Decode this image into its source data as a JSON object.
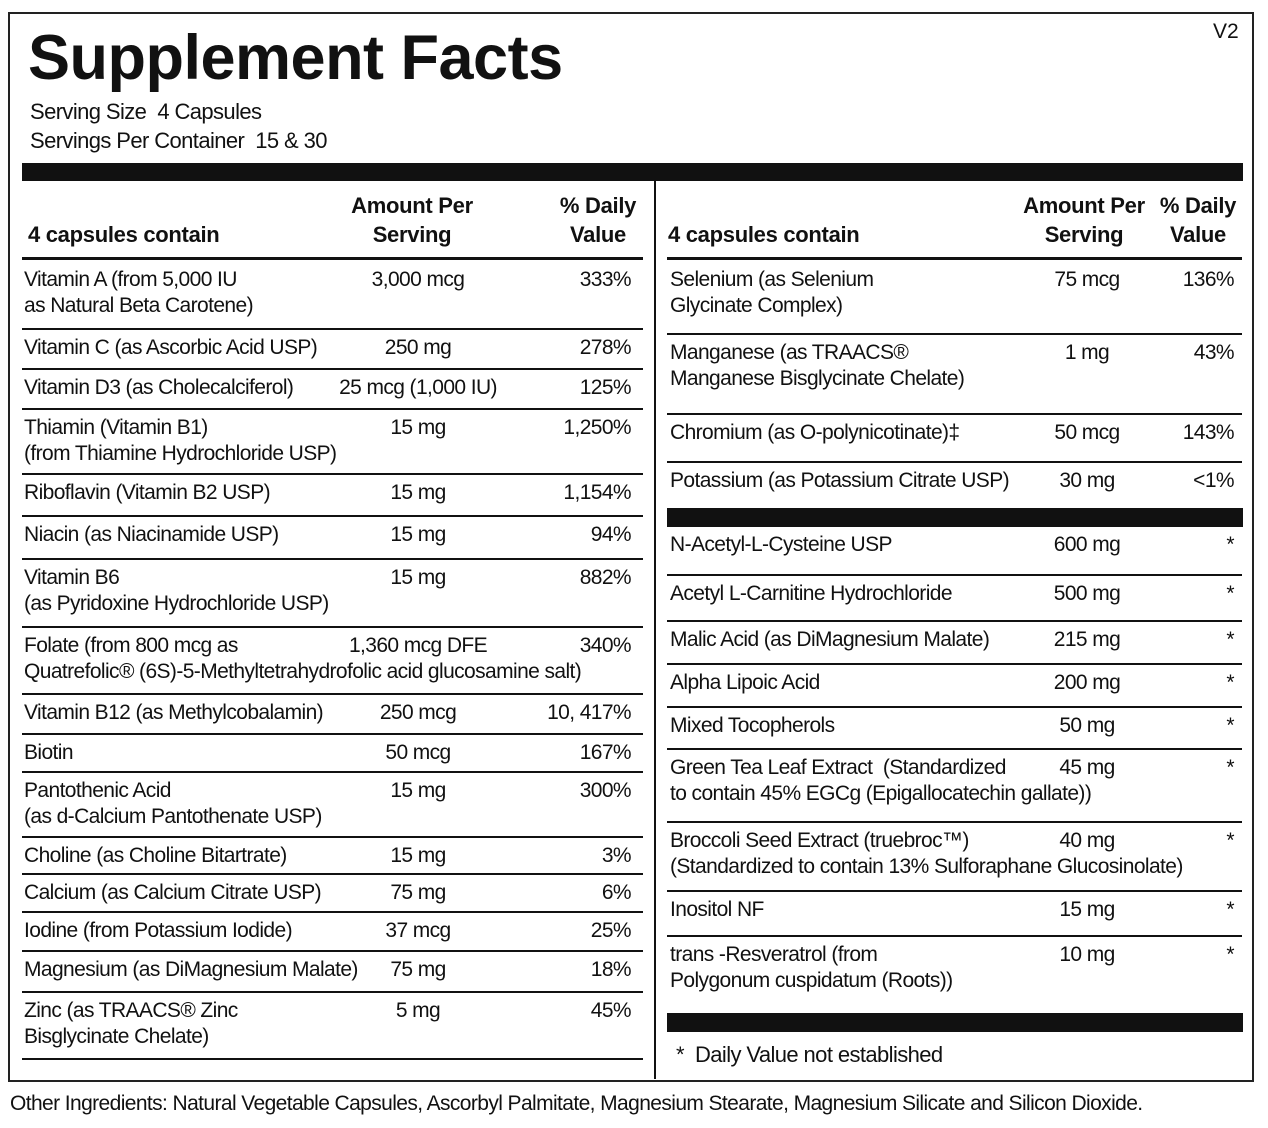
{
  "version": "V2",
  "title": "Supplement Facts",
  "serving_size": "Serving Size  4 Capsules",
  "servings_per_container": "Servings Per Container  15 & 30",
  "left": {
    "header": [
      "4 capsules contain",
      "Amount Per\nServing",
      "% Daily\nValue"
    ],
    "rows": [
      [
        "Vitamin A (from 5,000 IU\nas Natural Beta Carotene)",
        "3,000 mcg",
        "333%"
      ],
      [
        "Vitamin C (as Ascorbic Acid USP)",
        "250 mg",
        "278%"
      ],
      [
        "Vitamin D3 (as Cholecalciferol)",
        "25 mcg (1,000 IU)",
        "125%"
      ],
      [
        "Thiamin (Vitamin B1)\n(from Thiamine Hydrochloride USP)",
        "15 mg",
        "1,250%"
      ],
      [
        "Riboflavin (Vitamin B2 USP)",
        "15 mg",
        "1,154%"
      ],
      [
        "Niacin (as Niacinamide USP)",
        "15 mg",
        "94%"
      ],
      [
        "Vitamin B6\n(as Pyridoxine Hydrochloride USP)",
        "15 mg",
        "882%"
      ],
      [
        "Folate (from 800 mcg as\nQuatrefolic® (6S)-5-Methyltetrahydrofolic acid glucosamine salt)",
        "1,360 mcg DFE",
        "340%"
      ],
      [
        "Vitamin B12 (as Methylcobalamin)",
        "250 mcg",
        "10, 417%"
      ],
      [
        "Biotin",
        "50 mcg",
        "167%"
      ],
      [
        "Pantothenic Acid\n(as d-Calcium Pantothenate USP)",
        "15 mg",
        "300%"
      ],
      [
        "Choline (as Choline Bitartrate)",
        "15 mg",
        "3%"
      ],
      [
        "Calcium (as Calcium Citrate USP)",
        "75 mg",
        "6%"
      ],
      [
        "Iodine (from Potassium Iodide)",
        "37 mcg",
        "25%"
      ],
      [
        "Magnesium (as DiMagnesium Malate)",
        "75 mg",
        "18%"
      ],
      [
        "Zinc (as TRAACS® Zinc\nBisglycinate Chelate)",
        "5 mg",
        "45%"
      ]
    ]
  },
  "right": {
    "header": [
      "4 capsules contain",
      "Amount Per\nServing",
      "% Daily\nValue"
    ],
    "rows": [
      [
        "Selenium (as Selenium\nGlycinate Complex)",
        "75 mcg",
        "136%"
      ],
      [
        "Manganese (as TRAACS®\nManganese Bisglycinate Chelate)",
        "1 mg",
        "43%"
      ],
      [
        "Chromium (as O-polynicotinate)‡",
        "50 mcg",
        "143%"
      ],
      [
        "Potassium (as Potassium Citrate USP)",
        "30 mg",
        "<1%"
      ],
      [
        "N-Acetyl-L-Cysteine USP",
        "600 mg",
        "*"
      ],
      [
        "Acetyl L-Carnitine Hydrochloride",
        "500 mg",
        "*"
      ],
      [
        "Malic Acid (as DiMagnesium Malate)",
        "215 mg",
        "*"
      ],
      [
        "Alpha Lipoic Acid",
        "200 mg",
        "*"
      ],
      [
        "Mixed Tocopherols",
        "50 mg",
        "*"
      ],
      [
        "Green Tea Leaf Extract  (Standardized\nto contain 45% EGCg (Epigallocatechin gallate))",
        "45 mg",
        "*"
      ],
      [
        "Broccoli Seed Extract (truebroc™)\n(Standardized to contain 13% Sulforaphane Glucosinolate)",
        "40 mg",
        "*"
      ],
      [
        "Inositol NF",
        "15 mg",
        "*"
      ],
      [
        "trans -Resveratrol (from\nPolygonum cuspidatum (Roots))",
        "10 mg",
        "*"
      ]
    ]
  },
  "footnote": "*  Daily Value not established",
  "other_ingredients": "Other Ingredients: Natural Vegetable Capsules, Ascorbyl Palmitate, Magnesium Stearate, Magnesium Silicate and Silicon Dioxide."
}
